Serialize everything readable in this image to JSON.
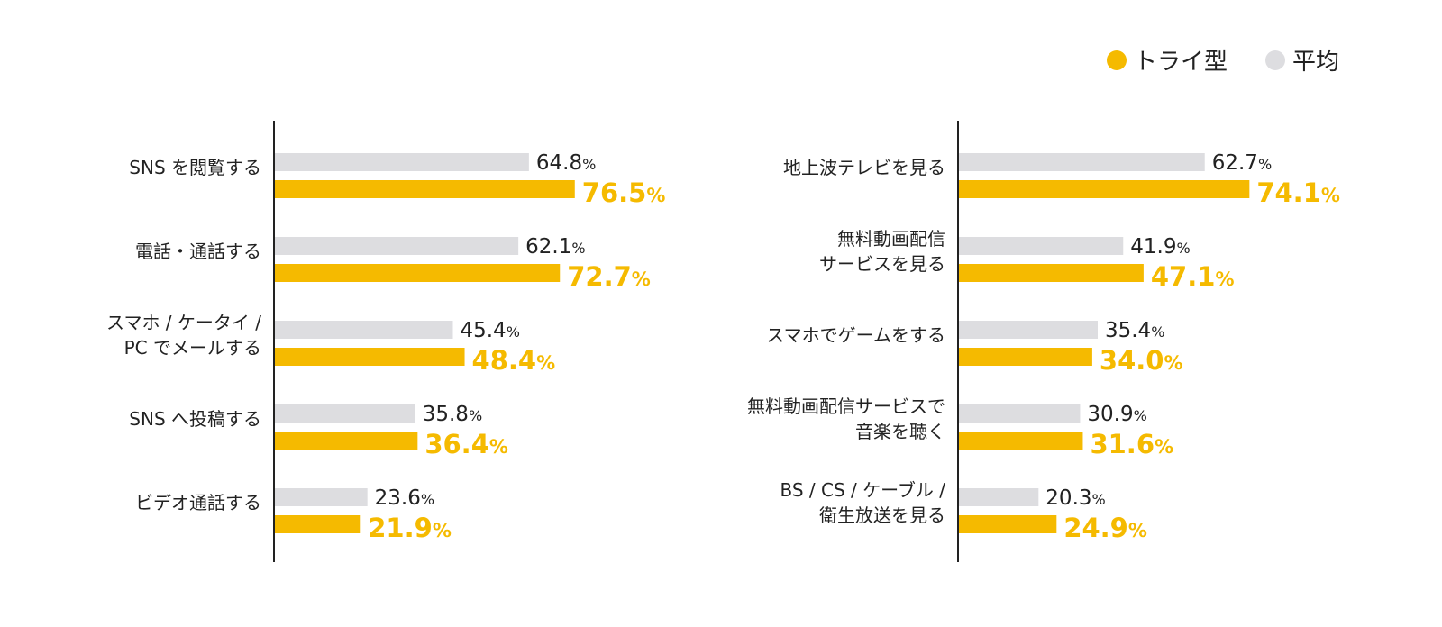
{
  "legend": {
    "try_label": "トライ型",
    "avg_label": "平均"
  },
  "colors": {
    "try": "#F5BA00",
    "avg": "#DDDDE0",
    "axis": "#222222",
    "text": "#222222"
  },
  "chart_data": [
    {
      "type": "bar",
      "orientation": "horizontal",
      "categories": [
        [
          "SNS を閲覧する"
        ],
        [
          "電話・通話する"
        ],
        [
          "スマホ / ケータイ /",
          "PC でメールする"
        ],
        [
          "SNS へ投稿する"
        ],
        [
          "ビデオ通話する"
        ]
      ],
      "series": [
        {
          "name": "平均",
          "values": [
            64.8,
            62.1,
            45.4,
            35.8,
            23.6
          ]
        },
        {
          "name": "トライ型",
          "values": [
            76.5,
            72.7,
            48.4,
            36.4,
            21.9
          ]
        }
      ],
      "unit": "%"
    },
    {
      "type": "bar",
      "orientation": "horizontal",
      "categories": [
        [
          "地上波テレビを見る"
        ],
        [
          "無料動画配信",
          "サービスを見る"
        ],
        [
          "スマホでゲームをする"
        ],
        [
          "無料動画配信サービスで",
          "音楽を聴く"
        ],
        [
          "BS / CS / ケーブル /",
          "衛生放送を見る"
        ]
      ],
      "series": [
        {
          "name": "平均",
          "values": [
            62.7,
            41.9,
            35.4,
            30.9,
            20.3
          ]
        },
        {
          "name": "トライ型",
          "values": [
            74.1,
            47.1,
            34.0,
            31.6,
            24.9
          ]
        }
      ],
      "unit": "%"
    }
  ]
}
